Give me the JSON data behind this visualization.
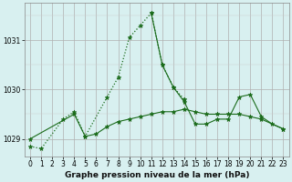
{
  "s1_x": [
    0,
    1,
    3,
    4,
    5,
    7,
    8,
    9,
    10,
    11,
    12,
    13,
    14
  ],
  "s1_y": [
    1028.85,
    1028.8,
    1029.4,
    1029.55,
    1029.05,
    1029.85,
    1030.25,
    1031.05,
    1031.3,
    1031.55,
    1030.5,
    1030.05,
    1029.8
  ],
  "s2_x": [
    0,
    4,
    5,
    6,
    7,
    8,
    9,
    10,
    11,
    12,
    13,
    14,
    15,
    16,
    17,
    18,
    19,
    20,
    21,
    23
  ],
  "s2_y": [
    1029.0,
    1029.5,
    1029.05,
    1029.1,
    1029.25,
    1029.35,
    1029.4,
    1029.45,
    1029.5,
    1029.55,
    1029.55,
    1029.6,
    1029.55,
    1029.5,
    1029.5,
    1029.5,
    1029.5,
    1029.45,
    1029.4,
    1029.2
  ],
  "s3_x": [
    11,
    12,
    13,
    14,
    15,
    16,
    17,
    18,
    19,
    20,
    21,
    22,
    23
  ],
  "s3_y": [
    1031.55,
    1030.5,
    1030.05,
    1029.75,
    1029.3,
    1029.3,
    1029.4,
    1029.4,
    1029.85,
    1029.9,
    1029.45,
    1029.3,
    1029.2
  ],
  "line_color": "#1a6b1a",
  "background_color": "#d8f0f0",
  "grid_major_color": "#b0b0b0",
  "grid_minor_color": "#cccccc",
  "xlabel": "Graphe pression niveau de la mer (hPa)",
  "xlim": [
    -0.5,
    23.5
  ],
  "ylim": [
    1028.65,
    1031.75
  ],
  "yticks": [
    1029,
    1030,
    1031
  ],
  "xticks": [
    0,
    1,
    2,
    3,
    4,
    5,
    6,
    7,
    8,
    9,
    10,
    11,
    12,
    13,
    14,
    15,
    16,
    17,
    18,
    19,
    20,
    21,
    22,
    23
  ],
  "xlabel_fontsize": 6.5,
  "tick_fontsize": 5.5
}
